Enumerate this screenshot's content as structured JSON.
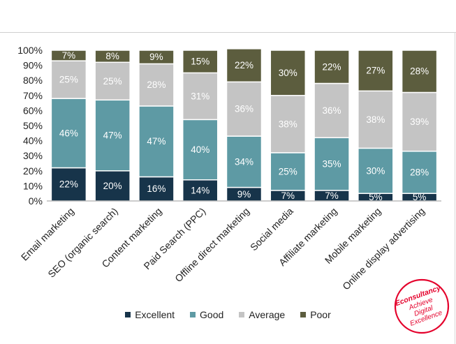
{
  "chart_data": {
    "type": "bar",
    "stacked": true,
    "categories": [
      "Email marketing",
      "SEO (organic search)",
      "Content marketing",
      "Paid Search (PPC)",
      "Offline direct marketing",
      "Social media",
      "Affiliate marketing",
      "Mobile marketing",
      "Online display advertising"
    ],
    "series": [
      {
        "name": "Excellent",
        "color": "#17344a",
        "label_color": "#ffffff",
        "values": [
          22,
          20,
          16,
          14,
          9,
          7,
          7,
          5,
          5
        ]
      },
      {
        "name": "Good",
        "color": "#5e9aa4",
        "label_color": "#ffffff",
        "values": [
          46,
          47,
          47,
          40,
          34,
          25,
          35,
          30,
          28
        ]
      },
      {
        "name": "Average",
        "color": "#c4c4c4",
        "label_color": "#ffffff",
        "values": [
          25,
          25,
          28,
          31,
          36,
          38,
          36,
          38,
          39
        ]
      },
      {
        "name": "Poor",
        "color": "#5c5d3e",
        "label_color": "#ffffff",
        "values": [
          7,
          8,
          9,
          15,
          22,
          30,
          22,
          27,
          28
        ]
      }
    ],
    "yticks": [
      "0%",
      "10%",
      "20%",
      "30%",
      "40%",
      "50%",
      "60%",
      "70%",
      "80%",
      "90%",
      "100%"
    ],
    "ylim": [
      0,
      100
    ],
    "label_suffix": "%",
    "title": "",
    "xlabel": "",
    "ylabel": "",
    "legend_position": "bottom"
  },
  "logo": {
    "line1": "Econsultancy",
    "line2": "Achieve",
    "line3": "Digital",
    "line4": "Excellence",
    "color": "#e4002b"
  }
}
